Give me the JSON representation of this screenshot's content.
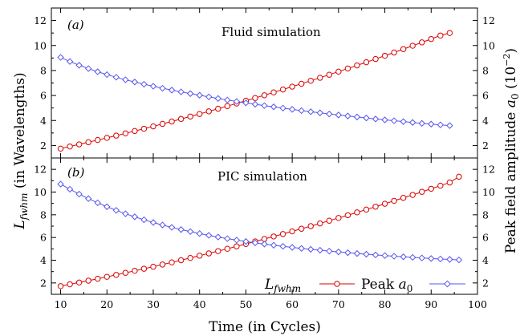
{
  "chart_data": [
    {
      "type": "line",
      "panel_label": "(a)",
      "title": "Fluid simulation",
      "x": [
        10,
        12,
        14,
        16,
        18,
        20,
        22,
        24,
        26,
        28,
        30,
        32,
        34,
        36,
        38,
        40,
        42,
        44,
        46,
        48,
        50,
        52,
        54,
        56,
        58,
        60,
        62,
        64,
        66,
        68,
        70,
        72,
        74,
        76,
        78,
        80,
        82,
        84,
        86,
        88,
        90,
        92,
        94
      ],
      "series": [
        {
          "name": "L_fwhm",
          "axis": "left",
          "color": "#dd0000",
          "marker": "circle",
          "values": [
            1.75,
            1.92,
            2.09,
            2.26,
            2.44,
            2.61,
            2.79,
            2.97,
            3.16,
            3.34,
            3.53,
            3.73,
            3.92,
            4.12,
            4.32,
            4.52,
            4.73,
            4.94,
            5.15,
            5.36,
            5.58,
            5.8,
            6.02,
            6.25,
            6.48,
            6.71,
            6.94,
            7.18,
            7.42,
            7.66,
            7.91,
            8.16,
            8.41,
            8.66,
            8.92,
            9.18,
            9.44,
            9.71,
            9.98,
            10.25,
            10.52,
            10.8,
            11.0
          ]
        },
        {
          "name": "Peak a0",
          "axis": "right",
          "color": "#5555ee",
          "marker": "diamond",
          "values": [
            9.05,
            8.72,
            8.42,
            8.15,
            7.9,
            7.67,
            7.46,
            7.26,
            7.08,
            6.9,
            6.74,
            6.58,
            6.43,
            6.29,
            6.15,
            6.02,
            5.89,
            5.76,
            5.64,
            5.52,
            5.41,
            5.3,
            5.19,
            5.09,
            4.99,
            4.89,
            4.79,
            4.7,
            4.61,
            4.52,
            4.44,
            4.36,
            4.28,
            4.2,
            4.12,
            4.05,
            3.98,
            3.91,
            3.84,
            3.77,
            3.71,
            3.65,
            3.59
          ]
        }
      ],
      "xlim": [
        8,
        100
      ],
      "ylim_left": [
        1,
        13
      ],
      "ylim_right": [
        1,
        13
      ],
      "yticks": [
        2,
        4,
        6,
        8,
        10,
        12
      ]
    },
    {
      "type": "line",
      "panel_label": "(b)",
      "title": "PIC simulation",
      "x": [
        10,
        12,
        14,
        16,
        18,
        20,
        22,
        24,
        26,
        28,
        30,
        32,
        34,
        36,
        38,
        40,
        42,
        44,
        46,
        48,
        50,
        52,
        54,
        56,
        58,
        60,
        62,
        64,
        66,
        68,
        70,
        72,
        74,
        76,
        78,
        80,
        82,
        84,
        86,
        88,
        90,
        92,
        94,
        96
      ],
      "series": [
        {
          "name": "L_fwhm",
          "axis": "left",
          "color": "#dd0000",
          "marker": "circle",
          "values": [
            1.72,
            1.88,
            2.04,
            2.2,
            2.37,
            2.54,
            2.71,
            2.89,
            3.07,
            3.25,
            3.43,
            3.62,
            3.81,
            4.0,
            4.2,
            4.4,
            4.6,
            4.8,
            5.01,
            5.22,
            5.43,
            5.65,
            5.87,
            6.09,
            6.31,
            6.54,
            6.77,
            7.0,
            7.24,
            7.48,
            7.72,
            7.96,
            8.21,
            8.46,
            8.71,
            8.97,
            9.23,
            9.49,
            9.75,
            10.02,
            10.29,
            10.56,
            10.84,
            11.35
          ]
        },
        {
          "name": "Peak a0",
          "axis": "right",
          "color": "#5555ee",
          "marker": "diamond",
          "values": [
            10.7,
            10.25,
            9.82,
            9.42,
            9.05,
            8.71,
            8.39,
            8.09,
            7.82,
            7.56,
            7.32,
            7.1,
            6.89,
            6.7,
            6.52,
            6.35,
            6.19,
            6.04,
            5.9,
            5.77,
            5.65,
            5.53,
            5.42,
            5.32,
            5.22,
            5.13,
            5.04,
            4.96,
            4.88,
            4.8,
            4.73,
            4.66,
            4.59,
            4.53,
            4.47,
            4.41,
            4.35,
            4.3,
            4.25,
            4.2,
            4.15,
            4.11,
            4.07,
            4.03
          ]
        }
      ],
      "xlim": [
        8,
        100
      ],
      "ylim_left": [
        1,
        13
      ],
      "ylim_right": [
        1,
        13
      ],
      "yticks": [
        2,
        4,
        6,
        8,
        10,
        12
      ],
      "xticks": [
        10,
        20,
        30,
        40,
        50,
        60,
        70,
        80,
        90,
        100
      ]
    }
  ],
  "axes": {
    "xlabel": "Time (in Cycles)",
    "ylabel_left": "L",
    "ylabel_left_sub": "fwhm",
    "ylabel_left_rest": " (in Wavelengths)",
    "ylabel_right_prefix": "Peak field amplitude ",
    "ylabel_right_var": "a",
    "ylabel_right_sub": "0",
    "ylabel_right_suffix": " (10",
    "ylabel_right_exp": "−2",
    "ylabel_right_close": ")"
  },
  "legend": {
    "entry1_var": "L",
    "entry1_sub": "fwhm",
    "entry2_prefix": "Peak ",
    "entry2_var": "a",
    "entry2_sub": "0"
  }
}
